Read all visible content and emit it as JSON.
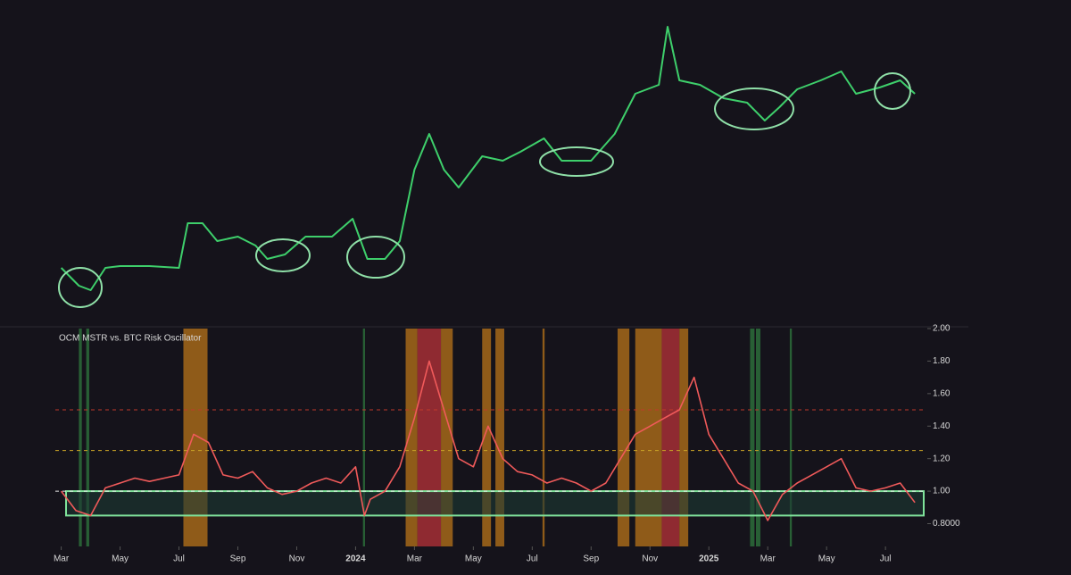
{
  "chart_data": [
    {
      "type": "line",
      "x": [
        0,
        0.6,
        1,
        1.5,
        2,
        3,
        4,
        4.3,
        4.8,
        5.3,
        6,
        6.6,
        7,
        7.6,
        8.3,
        9.2,
        9.9,
        10.4,
        11,
        11.5,
        12,
        12.5,
        13,
        13.5,
        14.3,
        15,
        15.6,
        16.4,
        17,
        18,
        18.8,
        19.5,
        20.3,
        20.6,
        21,
        21.7,
        22.5,
        23.3,
        23.9,
        24.4,
        25,
        25.8,
        26.5,
        27,
        27.8,
        28.5,
        29
      ],
      "values": [
        50,
        30,
        25,
        50,
        52,
        52,
        50,
        100,
        100,
        80,
        85,
        75,
        60,
        65,
        85,
        85,
        105,
        60,
        60,
        80,
        160,
        200,
        160,
        140,
        175,
        170,
        180,
        195,
        170,
        170,
        200,
        245,
        255,
        320,
        260,
        255,
        240,
        235,
        215,
        230,
        250,
        260,
        270,
        245,
        252,
        260,
        245
      ],
      "color": "#3ecf6b",
      "xlim": [
        -0.2,
        29.3
      ],
      "ylim": [
        0,
        340
      ]
    },
    {
      "type": "line",
      "title": "OCM MSTR vs. BTC Risk Oscillator",
      "x": [
        0,
        0.5,
        1,
        1.5,
        2,
        2.5,
        3,
        3.5,
        4,
        4.5,
        5,
        5.5,
        6,
        6.5,
        7,
        7.5,
        8,
        8.5,
        9,
        9.5,
        10,
        10.3,
        10.5,
        11,
        11.5,
        12,
        12.5,
        13,
        13.5,
        14,
        14.5,
        15,
        15.5,
        16,
        16.5,
        17,
        17.5,
        18,
        18.5,
        19,
        19.5,
        20,
        20.5,
        21,
        21.5,
        22,
        22.5,
        23,
        23.5,
        24,
        24.5,
        25,
        25.5,
        26,
        26.5,
        27,
        27.5,
        28,
        28.5,
        29
      ],
      "series": [
        {
          "color": "#f05a5a",
          "values": [
            1.0,
            0.88,
            0.85,
            1.02,
            1.05,
            1.08,
            1.06,
            1.08,
            1.1,
            1.35,
            1.3,
            1.1,
            1.08,
            1.12,
            1.02,
            0.98,
            1.0,
            1.05,
            1.08,
            1.05,
            1.15,
            0.85,
            0.95,
            1.0,
            1.15,
            1.45,
            1.8,
            1.5,
            1.2,
            1.15,
            1.4,
            1.2,
            1.12,
            1.1,
            1.05,
            1.08,
            1.05,
            1.0,
            1.05,
            1.2,
            1.35,
            1.4,
            1.45,
            1.5,
            1.7,
            1.35,
            1.2,
            1.05,
            1.0,
            0.82,
            0.98,
            1.05,
            1.1,
            1.15,
            1.2,
            1.02,
            1.0,
            1.02,
            1.05,
            0.93
          ]
        }
      ],
      "xlim": [
        -0.2,
        29.3
      ],
      "ylim": [
        0.66,
        2.0
      ],
      "xticks": [
        {
          "value": 0,
          "label": "Mar"
        },
        {
          "value": 2,
          "label": "May"
        },
        {
          "value": 4,
          "label": "Jul"
        },
        {
          "value": 6,
          "label": "Sep"
        },
        {
          "value": 8,
          "label": "Nov"
        },
        {
          "value": 10,
          "label": "2024"
        },
        {
          "value": 12,
          "label": "Mar"
        },
        {
          "value": 14,
          "label": "May"
        },
        {
          "value": 16,
          "label": "Jul"
        },
        {
          "value": 18,
          "label": "Sep"
        },
        {
          "value": 20,
          "label": "Nov"
        },
        {
          "value": 22,
          "label": "2025"
        },
        {
          "value": 24,
          "label": "Mar"
        },
        {
          "value": 26,
          "label": "May"
        },
        {
          "value": 28,
          "label": "Jul"
        }
      ],
      "yticks": [
        {
          "value": 0.8,
          "label": "0.8000"
        },
        {
          "value": 1.0,
          "label": "1.00"
        },
        {
          "value": 1.2,
          "label": "1.20"
        },
        {
          "value": 1.4,
          "label": "1.40"
        },
        {
          "value": 1.6,
          "label": "1.60"
        },
        {
          "value": 1.8,
          "label": "1.80"
        },
        {
          "value": 2.0,
          "label": "2.00"
        }
      ],
      "hlines": [
        {
          "value": 1.5,
          "color": "#c0392b"
        },
        {
          "value": 1.25,
          "color": "#c9a227"
        },
        {
          "value": 1.0,
          "color": "#e8e8e8"
        }
      ],
      "zone": {
        "range": [
          0.85,
          1.0
        ],
        "color": "#7fe39a"
      },
      "bands": [
        {
          "x": [
            0.6,
            0.7
          ],
          "color": "#2f7a3f"
        },
        {
          "x": [
            0.85,
            0.95
          ],
          "color": "#2f7a3f"
        },
        {
          "x": [
            4.15,
            4.97
          ],
          "color": "#b8741a"
        },
        {
          "x": [
            10.25,
            10.32
          ],
          "color": "#2f7a3f"
        },
        {
          "x": [
            11.7,
            12.1
          ],
          "color": "#b8741a"
        },
        {
          "x": [
            12.1,
            12.9
          ],
          "color": "#b8333a"
        },
        {
          "x": [
            12.9,
            13.3
          ],
          "color": "#b8741a"
        },
        {
          "x": [
            14.3,
            14.6
          ],
          "color": "#b8741a"
        },
        {
          "x": [
            14.75,
            15.05
          ],
          "color": "#b8741a"
        },
        {
          "x": [
            16.35,
            16.42
          ],
          "color": "#b8741a"
        },
        {
          "x": [
            18.9,
            19.3
          ],
          "color": "#b8741a"
        },
        {
          "x": [
            19.5,
            20.4
          ],
          "color": "#b8741a"
        },
        {
          "x": [
            20.4,
            21.0
          ],
          "color": "#b8333a"
        },
        {
          "x": [
            21.0,
            21.3
          ],
          "color": "#b8741a"
        },
        {
          "x": [
            23.4,
            23.55
          ],
          "color": "#2f7a3f"
        },
        {
          "x": [
            23.6,
            23.75
          ],
          "color": "#2f7a3f"
        },
        {
          "x": [
            24.75,
            24.82
          ],
          "color": "#2f7a3f"
        }
      ]
    }
  ]
}
